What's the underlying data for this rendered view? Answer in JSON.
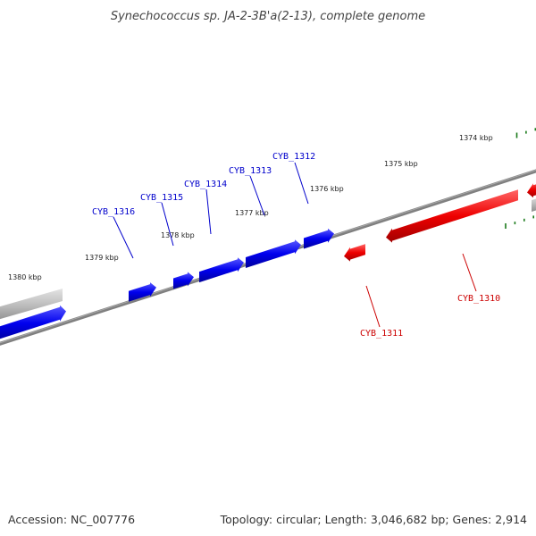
{
  "title": "Synechococcus sp. JA-2-3B'a(2-13), complete genome",
  "footer": {
    "accession_label": "Accession: NC_007776",
    "summary_label": "Topology: circular; Length: 3,046,682 bp; Genes: 2,914"
  },
  "scale_labels": [
    "1374 kbp",
    "1375 kbp",
    "1376 kbp",
    "1377 kbp",
    "1378 kbp",
    "1379 kbp",
    "1380 kbp"
  ],
  "genes_forward": [
    "CYB_1312",
    "CYB_1313",
    "CYB_1314",
    "CYB_1315",
    "CYB_1316"
  ],
  "genes_reverse": [
    "CYB_1310",
    "CYB_1311"
  ],
  "colors": {
    "forward_strand": "#0000ee",
    "reverse_strand": "#ee0000",
    "other_feature": "#bbbbbb",
    "backbone": "#777777",
    "ticks": "#1a7a1a"
  }
}
